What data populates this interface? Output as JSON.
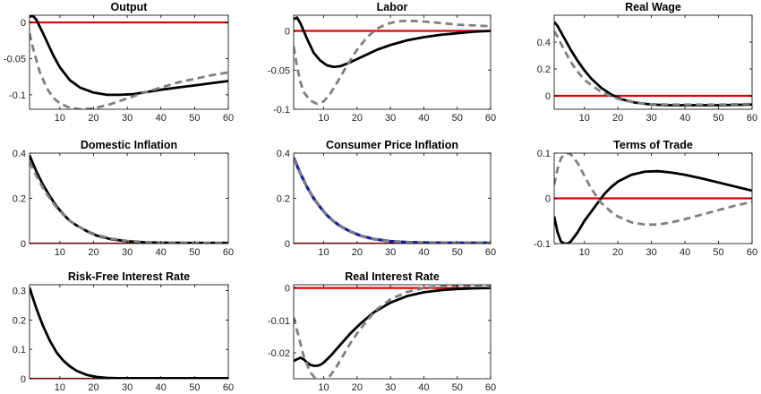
{
  "colors": {
    "solid": "#000000",
    "dashed": "#808080",
    "zero_line": "#e00000",
    "blue": "#1a1aa6",
    "axes": "#000000"
  },
  "chart_data": [
    {
      "type": "line",
      "title": "Output",
      "xlim": [
        1,
        60
      ],
      "ylim": [
        -0.12,
        0.01
      ],
      "xticks": [
        10,
        20,
        30,
        40,
        50,
        60
      ],
      "xtick_labels": [
        "10",
        "20",
        "30",
        "40",
        "50",
        "60"
      ],
      "yticks": [
        0,
        -0.05,
        -0.1
      ],
      "ytick_labels": [
        "0",
        "-0.05",
        "-0.1"
      ],
      "hline": 0,
      "series": [
        {
          "style": "solid",
          "x": [
            1,
            2,
            3,
            5,
            8,
            10,
            13,
            16,
            20,
            24,
            28,
            32,
            36,
            40,
            45,
            50,
            55,
            60
          ],
          "y": [
            0.008,
            0.009,
            0.004,
            -0.015,
            -0.045,
            -0.062,
            -0.08,
            -0.09,
            -0.097,
            -0.1,
            -0.1,
            -0.099,
            -0.096,
            -0.093,
            -0.09,
            -0.087,
            -0.084,
            -0.081
          ]
        },
        {
          "style": "dashed",
          "x": [
            1,
            2,
            4,
            6,
            8,
            10,
            13,
            16,
            20,
            25,
            30,
            35,
            40,
            45,
            50,
            55,
            60
          ],
          "y": [
            -0.015,
            -0.035,
            -0.068,
            -0.09,
            -0.104,
            -0.112,
            -0.118,
            -0.12,
            -0.119,
            -0.113,
            -0.105,
            -0.097,
            -0.09,
            -0.083,
            -0.078,
            -0.073,
            -0.069
          ]
        }
      ]
    },
    {
      "type": "line",
      "title": "Labor",
      "xlim": [
        1,
        60
      ],
      "ylim": [
        -0.1,
        0.02
      ],
      "xticks": [
        10,
        20,
        30,
        40,
        50,
        60
      ],
      "xtick_labels": [
        "10",
        "20",
        "30",
        "40",
        "50",
        "60"
      ],
      "yticks": [
        0,
        -0.05,
        -0.1
      ],
      "ytick_labels": [
        "0",
        "-0.05",
        "-0.1"
      ],
      "hline": 0,
      "series": [
        {
          "style": "solid",
          "x": [
            1,
            2,
            3,
            5,
            7,
            9,
            11,
            13,
            15,
            18,
            22,
            26,
            30,
            35,
            40,
            45,
            50,
            55,
            60
          ],
          "y": [
            0.015,
            0.017,
            0.01,
            -0.01,
            -0.028,
            -0.038,
            -0.044,
            -0.046,
            -0.045,
            -0.04,
            -0.032,
            -0.024,
            -0.018,
            -0.012,
            -0.008,
            -0.005,
            -0.003,
            -0.001,
            0
          ]
        },
        {
          "style": "dashed",
          "x": [
            1,
            2,
            3,
            4,
            6,
            8,
            10,
            12,
            14,
            17,
            20,
            23,
            26,
            29,
            32,
            35,
            40,
            45,
            50,
            55,
            60
          ],
          "y": [
            -0.02,
            -0.045,
            -0.065,
            -0.078,
            -0.089,
            -0.093,
            -0.09,
            -0.08,
            -0.066,
            -0.044,
            -0.024,
            -0.008,
            0.003,
            0.009,
            0.012,
            0.013,
            0.012,
            0.01,
            0.008,
            0.007,
            0.006
          ]
        }
      ]
    },
    {
      "type": "line",
      "title": "Real Wage",
      "xlim": [
        1,
        60
      ],
      "ylim": [
        -0.1,
        0.6
      ],
      "xticks": [
        10,
        20,
        30,
        40,
        50,
        60
      ],
      "xtick_labels": [
        "10",
        "20",
        "30",
        "40",
        "50",
        "60"
      ],
      "yticks": [
        0.4,
        0.2,
        0
      ],
      "ytick_labels": [
        "0.4",
        "0.2",
        "0"
      ],
      "hline": 0,
      "series": [
        {
          "style": "solid",
          "x": [
            1,
            2,
            4,
            6,
            8,
            10,
            12,
            15,
            18,
            21,
            25,
            30,
            35,
            40,
            50,
            60
          ],
          "y": [
            0.55,
            0.52,
            0.43,
            0.34,
            0.26,
            0.19,
            0.13,
            0.06,
            0.01,
            -0.025,
            -0.05,
            -0.065,
            -0.07,
            -0.07,
            -0.07,
            -0.065
          ]
        },
        {
          "style": "dashed",
          "x": [
            1,
            2,
            4,
            6,
            8,
            10,
            12,
            15,
            18,
            21,
            25,
            30,
            35,
            40,
            50,
            60
          ],
          "y": [
            0.48,
            0.44,
            0.34,
            0.25,
            0.18,
            0.12,
            0.08,
            0.03,
            -0.005,
            -0.03,
            -0.05,
            -0.062,
            -0.065,
            -0.065,
            -0.065,
            -0.06
          ]
        }
      ]
    },
    {
      "type": "line",
      "title": "Domestic Inflation",
      "xlim": [
        1,
        60
      ],
      "ylim": [
        0,
        0.4
      ],
      "xticks": [
        10,
        20,
        30,
        40,
        50,
        60
      ],
      "xtick_labels": [
        "10",
        "20",
        "30",
        "40",
        "50",
        "60"
      ],
      "yticks": [
        0.4,
        0.2,
        0
      ],
      "ytick_labels": [
        "0.4",
        "0.2",
        "0"
      ],
      "hline": 0,
      "series": [
        {
          "style": "solid",
          "x": [
            1,
            3,
            5,
            7,
            9,
            11,
            13,
            15,
            18,
            21,
            25,
            30,
            35,
            40,
            50,
            60
          ],
          "y": [
            0.39,
            0.32,
            0.26,
            0.21,
            0.165,
            0.13,
            0.1,
            0.08,
            0.055,
            0.035,
            0.02,
            0.01,
            0.006,
            0.004,
            0.003,
            0.003
          ]
        },
        {
          "style": "dashed",
          "x": [
            1,
            3,
            5,
            7,
            9,
            11,
            13,
            15,
            18,
            21,
            25,
            30,
            35,
            40,
            50,
            60
          ],
          "y": [
            0.36,
            0.3,
            0.245,
            0.2,
            0.16,
            0.128,
            0.1,
            0.08,
            0.056,
            0.038,
            0.022,
            0.012,
            0.007,
            0.005,
            0.003,
            0.003
          ]
        }
      ]
    },
    {
      "type": "line",
      "title": "Consumer Price Inflation",
      "xlim": [
        1,
        60
      ],
      "ylim": [
        0,
        0.4
      ],
      "xticks": [
        10,
        20,
        30,
        40,
        50,
        60
      ],
      "xtick_labels": [
        "10",
        "20",
        "30",
        "40",
        "50",
        "60"
      ],
      "yticks": [
        0.4,
        0.2,
        0
      ],
      "ytick_labels": [
        "0.4",
        "0.2",
        "0"
      ],
      "hline": 0,
      "series": [
        {
          "style": "blue",
          "x": [
            1,
            3,
            5,
            7,
            9,
            11,
            13,
            15,
            18,
            21,
            25,
            30,
            35,
            40,
            50,
            60
          ],
          "y": [
            0.38,
            0.31,
            0.25,
            0.2,
            0.16,
            0.125,
            0.098,
            0.077,
            0.053,
            0.035,
            0.02,
            0.01,
            0.006,
            0.004,
            0.003,
            0.003
          ]
        },
        {
          "style": "dashed",
          "x": [
            1,
            3,
            5,
            7,
            9,
            11,
            13,
            15,
            18,
            21,
            25,
            30,
            35,
            40,
            50,
            60
          ],
          "y": [
            0.375,
            0.31,
            0.25,
            0.2,
            0.16,
            0.125,
            0.098,
            0.077,
            0.053,
            0.035,
            0.02,
            0.01,
            0.006,
            0.004,
            0.003,
            0.003
          ]
        }
      ]
    },
    {
      "type": "line",
      "title": "Terms of Trade",
      "xlim": [
        1,
        60
      ],
      "ylim": [
        -0.1,
        0.1
      ],
      "xticks": [
        10,
        20,
        30,
        40,
        50,
        60
      ],
      "xtick_labels": [
        "10",
        "20",
        "30",
        "40",
        "50",
        "60"
      ],
      "yticks": [
        0.1,
        0,
        -0.1
      ],
      "ytick_labels": [
        "0.1",
        "0",
        "-0.1"
      ],
      "hline": 0,
      "series": [
        {
          "style": "solid",
          "x": [
            1,
            2,
            3,
            4,
            5,
            6,
            8,
            10,
            13,
            16,
            18,
            20,
            24,
            28,
            32,
            36,
            40,
            45,
            50,
            55,
            60
          ],
          "y": [
            -0.04,
            -0.075,
            -0.095,
            -0.1,
            -0.1,
            -0.095,
            -0.075,
            -0.05,
            -0.02,
            0.01,
            0.025,
            0.037,
            0.052,
            0.059,
            0.06,
            0.057,
            0.052,
            0.044,
            0.035,
            0.026,
            0.017
          ]
        },
        {
          "style": "dashed",
          "x": [
            1,
            2,
            3,
            4,
            5,
            6,
            8,
            10,
            12,
            15,
            18,
            20,
            24,
            28,
            32,
            36,
            40,
            45,
            50,
            55,
            60
          ],
          "y": [
            0.03,
            0.065,
            0.088,
            0.098,
            0.1,
            0.097,
            0.078,
            0.05,
            0.022,
            -0.01,
            -0.03,
            -0.04,
            -0.053,
            -0.058,
            -0.058,
            -0.053,
            -0.046,
            -0.036,
            -0.026,
            -0.016,
            -0.008
          ]
        }
      ]
    },
    {
      "type": "line",
      "title": "Risk-Free Interest Rate",
      "xlim": [
        1,
        60
      ],
      "ylim": [
        0,
        0.32
      ],
      "xticks": [
        10,
        20,
        30,
        40,
        50,
        60
      ],
      "xtick_labels": [
        "10",
        "20",
        "30",
        "40",
        "50",
        "60"
      ],
      "yticks": [
        0.3,
        0.2,
        0.1,
        0
      ],
      "ytick_labels": [
        "0.3",
        "0.2",
        "0.1",
        "0"
      ],
      "hline": 0,
      "series": [
        {
          "style": "solid",
          "x": [
            1,
            3,
            5,
            7,
            9,
            11,
            13,
            15,
            18,
            21,
            24,
            27,
            30,
            35,
            40,
            50,
            60
          ],
          "y": [
            0.31,
            0.24,
            0.18,
            0.13,
            0.09,
            0.062,
            0.042,
            0.027,
            0.013,
            0.006,
            0.003,
            0.002,
            0.002,
            0.002,
            0.002,
            0.002,
            0.002
          ]
        }
      ]
    },
    {
      "type": "line",
      "title": "Real Interest Rate",
      "xlim": [
        1,
        60
      ],
      "ylim": [
        -0.028,
        0.001
      ],
      "xticks": [
        10,
        20,
        30,
        40,
        50,
        60
      ],
      "xtick_labels": [
        "10",
        "20",
        "30",
        "40",
        "50",
        "60"
      ],
      "yticks": [
        0,
        -0.01,
        -0.02
      ],
      "ytick_labels": [
        "0",
        "-0.01",
        "-0.02"
      ],
      "hline": 0,
      "series": [
        {
          "style": "solid",
          "x": [
            1,
            2,
            3,
            4,
            5,
            6,
            7,
            8,
            9,
            10,
            12,
            15,
            18,
            21,
            25,
            30,
            35,
            40,
            45,
            50,
            55,
            60
          ],
          "y": [
            -0.0225,
            -0.022,
            -0.0215,
            -0.022,
            -0.023,
            -0.0237,
            -0.024,
            -0.024,
            -0.0237,
            -0.023,
            -0.021,
            -0.0175,
            -0.014,
            -0.011,
            -0.0075,
            -0.0045,
            -0.0025,
            -0.0013,
            -0.0007,
            -0.0003,
            -0.0001,
            0
          ]
        },
        {
          "style": "dashed",
          "x": [
            1,
            2,
            3,
            4,
            6,
            8,
            10,
            12,
            14,
            16,
            18,
            20,
            23,
            26,
            30,
            35,
            40,
            45,
            50,
            55,
            60
          ],
          "y": [
            -0.009,
            -0.013,
            -0.017,
            -0.021,
            -0.026,
            -0.0285,
            -0.0285,
            -0.027,
            -0.024,
            -0.0205,
            -0.017,
            -0.014,
            -0.01,
            -0.0065,
            -0.0035,
            -0.0012,
            0,
            0.0005,
            0.0007,
            0.0006,
            0.0005
          ]
        }
      ]
    }
  ]
}
